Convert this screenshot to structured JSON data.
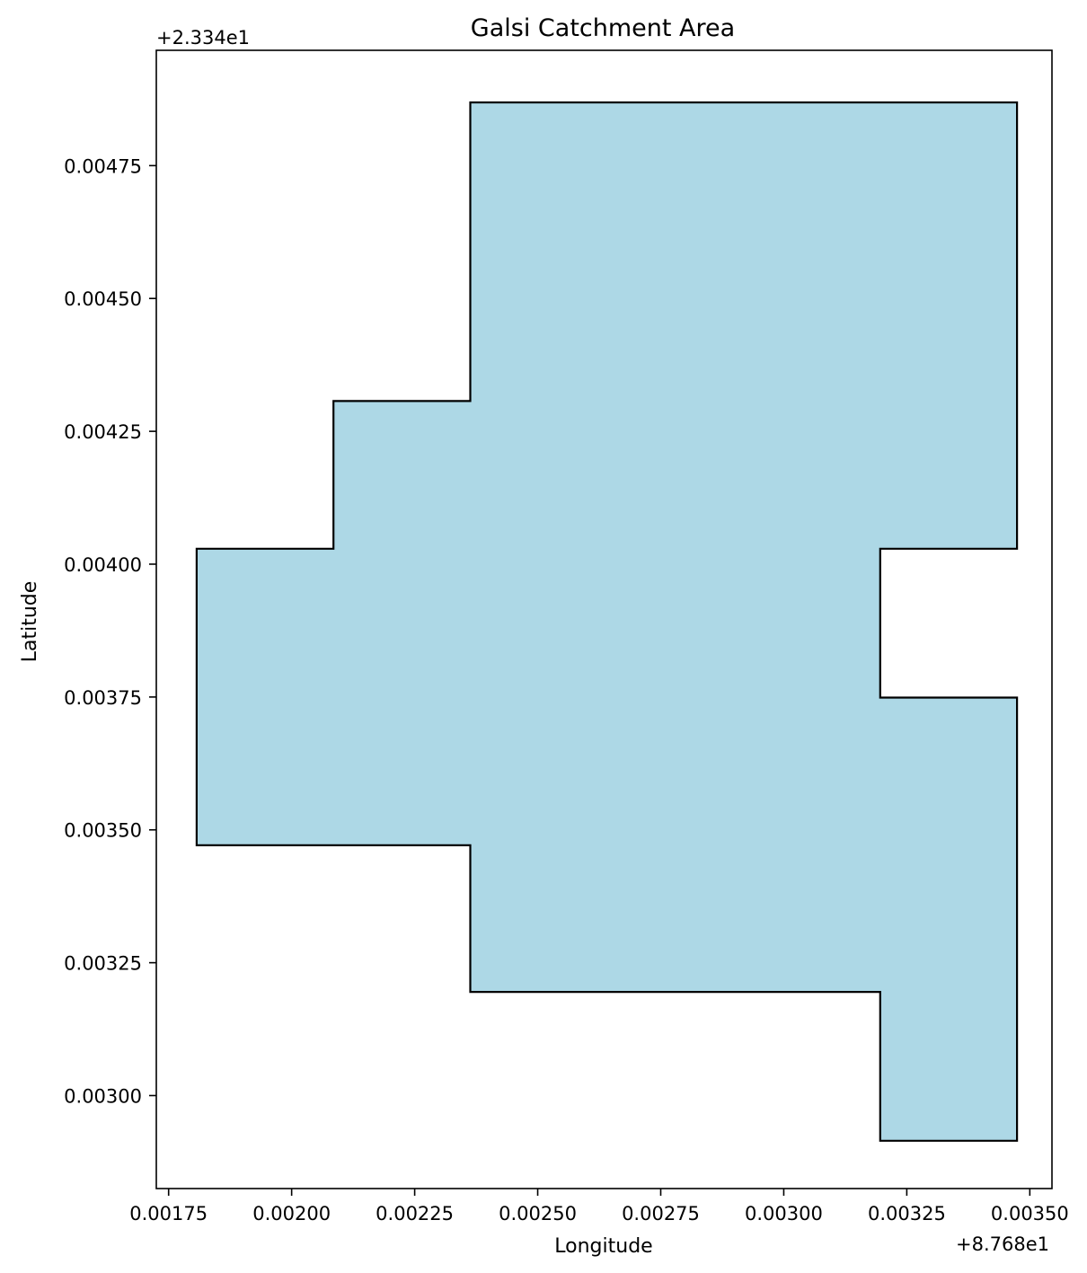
{
  "chart_data": {
    "type": "map",
    "title": "Galsi Catchment Area",
    "xlabel": "Longitude",
    "ylabel": "Latitude",
    "x_offset_label": "+8.768e1",
    "y_offset_label": "+2.334e1",
    "x_offset": 87.68,
    "y_offset": 23.34,
    "xlim": [
      0.001725,
      0.003545
    ],
    "ylim": [
      0.002825,
      0.004967
    ],
    "x_ticks": [
      0.00175,
      0.002,
      0.00225,
      0.0025,
      0.00275,
      0.003,
      0.00325,
      0.0035
    ],
    "x_tick_labels": [
      "0.00175",
      "0.00200",
      "0.00225",
      "0.00250",
      "0.00275",
      "0.00300",
      "0.00325",
      "0.00350"
    ],
    "y_ticks": [
      0.003,
      0.00325,
      0.0035,
      0.00375,
      0.004,
      0.00425,
      0.0045,
      0.00475
    ],
    "y_tick_labels": [
      "0.00300",
      "0.00325",
      "0.00350",
      "0.00375",
      "0.00400",
      "0.00425",
      "0.00450",
      "0.00475"
    ],
    "grid": false,
    "polygon": {
      "fill": "#add8e6",
      "stroke": "#000000",
      "points": [
        [
          0.002363,
          0.004869
        ],
        [
          0.003474,
          0.004869
        ],
        [
          0.003474,
          0.004029
        ],
        [
          0.003196,
          0.004029
        ],
        [
          0.003196,
          0.003749
        ],
        [
          0.003474,
          0.003749
        ],
        [
          0.003474,
          0.002915
        ],
        [
          0.003196,
          0.002915
        ],
        [
          0.003196,
          0.003195
        ],
        [
          0.002363,
          0.003195
        ],
        [
          0.002363,
          0.003471
        ],
        [
          0.001807,
          0.003471
        ],
        [
          0.001807,
          0.004029
        ],
        [
          0.002085,
          0.004029
        ],
        [
          0.002085,
          0.004307
        ],
        [
          0.002363,
          0.004307
        ]
      ]
    }
  }
}
